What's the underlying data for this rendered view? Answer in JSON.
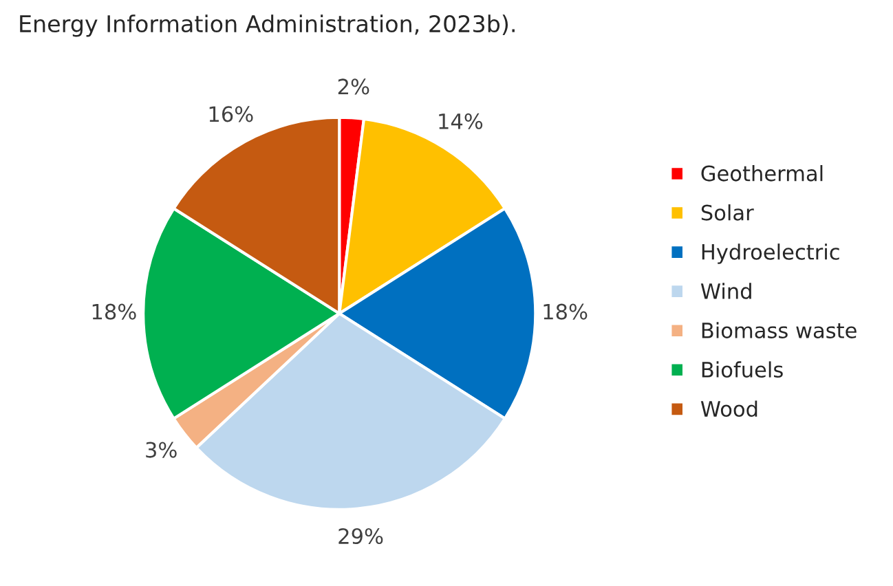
{
  "chart_data": {
    "type": "pie",
    "categories": [
      "Geothermal",
      "Solar",
      "Hydroelectric",
      "Wind",
      "Biomass waste",
      "Biofuels",
      "Wood"
    ],
    "values": [
      2,
      14,
      18,
      29,
      3,
      18,
      16
    ],
    "colors": [
      "#ff0000",
      "#ffc000",
      "#0070c0",
      "#bdd7ee",
      "#f4b183",
      "#00b050",
      "#c55a11"
    ],
    "value_labels": [
      "2%",
      "14%",
      "18%",
      "29%",
      "3%",
      "18%",
      "16%"
    ],
    "legend": "right",
    "annotations": [
      "Energy Information Administration, 2023b)."
    ]
  }
}
